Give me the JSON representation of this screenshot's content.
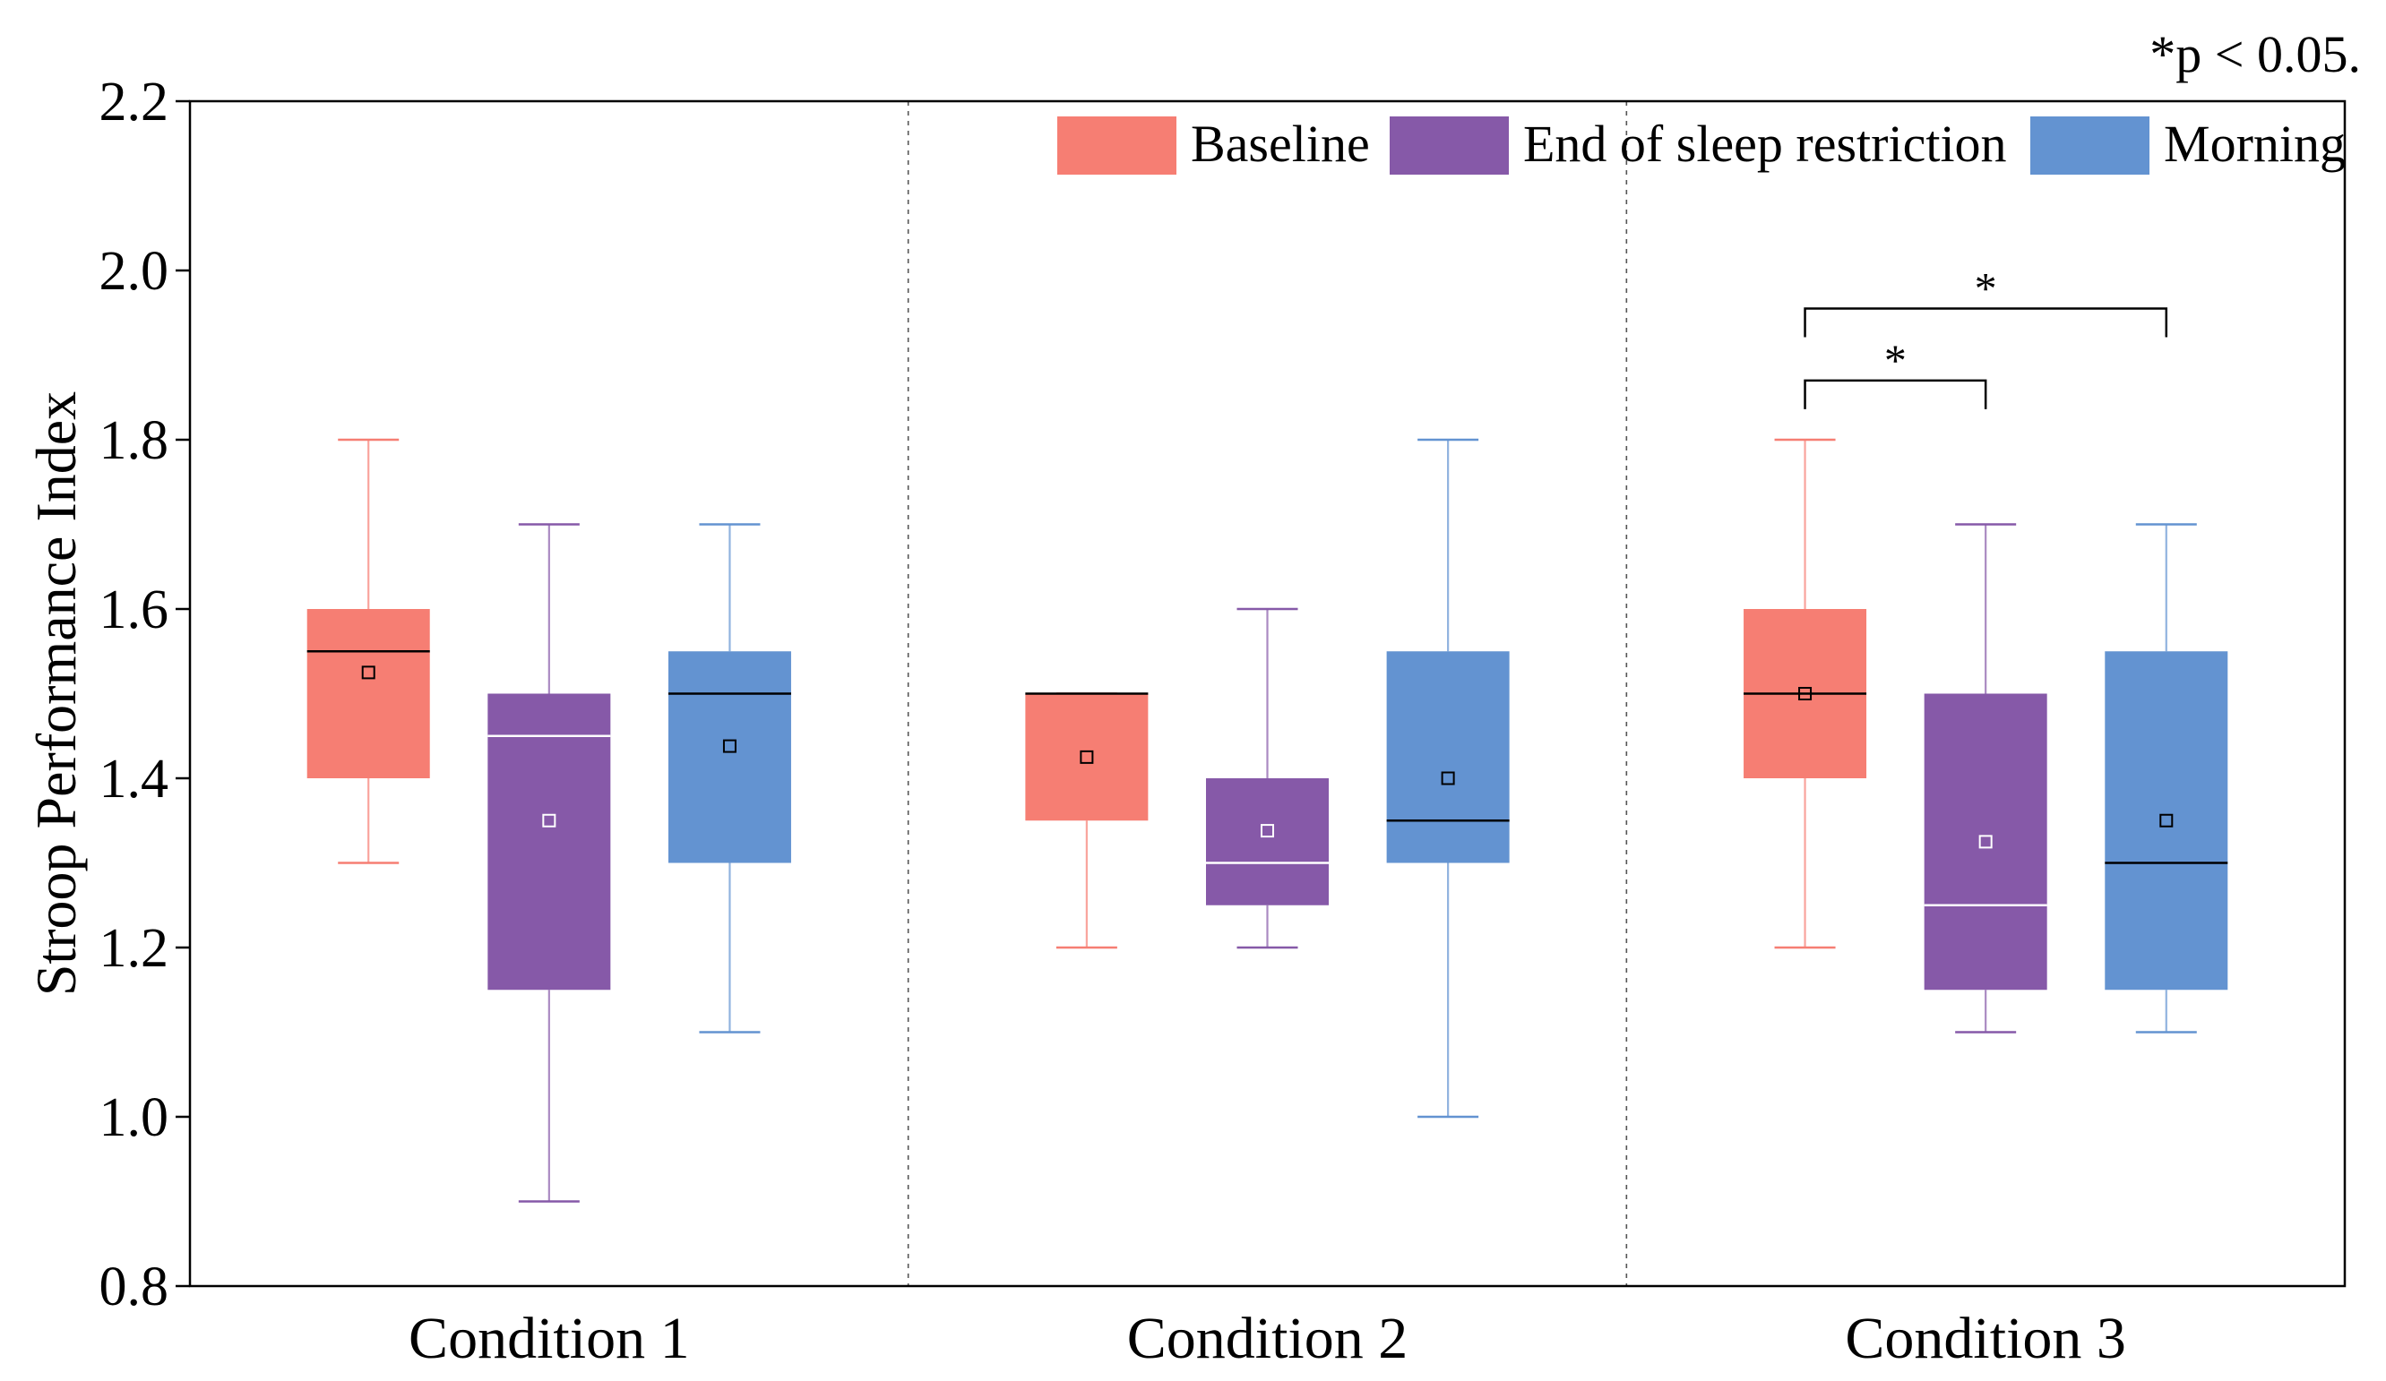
{
  "chart_data": {
    "type": "box",
    "ylabel": "Stroop Performance Index",
    "xlabel": "",
    "ylim": [
      0.8,
      2.2
    ],
    "yticks": [
      "0.8",
      "1.0",
      "1.2",
      "1.4",
      "1.6",
      "1.8",
      "2.0",
      "2.2"
    ],
    "ytick_values": [
      0.8,
      1.0,
      1.2,
      1.4,
      1.6,
      1.8,
      2.0,
      2.2
    ],
    "categories": [
      "Condition 1",
      "Condition 2",
      "Condition 3"
    ],
    "annotation": "*p < 0.05.",
    "legend_position": "top-right",
    "series": [
      {
        "name": "Baseline",
        "color": "#F67E73",
        "median_line_color": "#000000",
        "boxes": [
          {
            "min": 1.3,
            "q1": 1.4,
            "median": 1.55,
            "q3": 1.6,
            "max": 1.8,
            "mean": 1.525
          },
          {
            "min": 1.2,
            "q1": 1.35,
            "median": 1.5,
            "q3": 1.5,
            "max": 1.5,
            "mean": 1.425
          },
          {
            "min": 1.2,
            "q1": 1.4,
            "median": 1.5,
            "q3": 1.6,
            "max": 1.8,
            "mean": 1.5
          }
        ]
      },
      {
        "name": "End of sleep restriction",
        "color": "#8659A8",
        "median_line_color": "#ffffff",
        "boxes": [
          {
            "min": 0.9,
            "q1": 1.15,
            "median": 1.45,
            "q3": 1.5,
            "max": 1.7,
            "mean": 1.35
          },
          {
            "min": 1.2,
            "q1": 1.25,
            "median": 1.3,
            "q3": 1.4,
            "max": 1.6,
            "mean": 1.338
          },
          {
            "min": 1.1,
            "q1": 1.15,
            "median": 1.25,
            "q3": 1.5,
            "max": 1.7,
            "mean": 1.325
          }
        ]
      },
      {
        "name": "Morning",
        "color": "#6393D1",
        "median_line_color": "#000000",
        "boxes": [
          {
            "min": 1.1,
            "q1": 1.3,
            "median": 1.5,
            "q3": 1.55,
            "max": 1.7,
            "mean": 1.438
          },
          {
            "min": 1.0,
            "q1": 1.3,
            "median": 1.35,
            "q3": 1.55,
            "max": 1.8,
            "mean": 1.4
          },
          {
            "min": 1.1,
            "q1": 1.15,
            "median": 1.3,
            "q3": 1.55,
            "max": 1.7,
            "mean": 1.35
          }
        ]
      }
    ],
    "significance": [
      {
        "condition": 2,
        "from_series": 0,
        "to_series": 1,
        "label": "*",
        "y": 1.87
      },
      {
        "condition": 2,
        "from_series": 0,
        "to_series": 2,
        "label": "*",
        "y": 1.955
      }
    ]
  }
}
